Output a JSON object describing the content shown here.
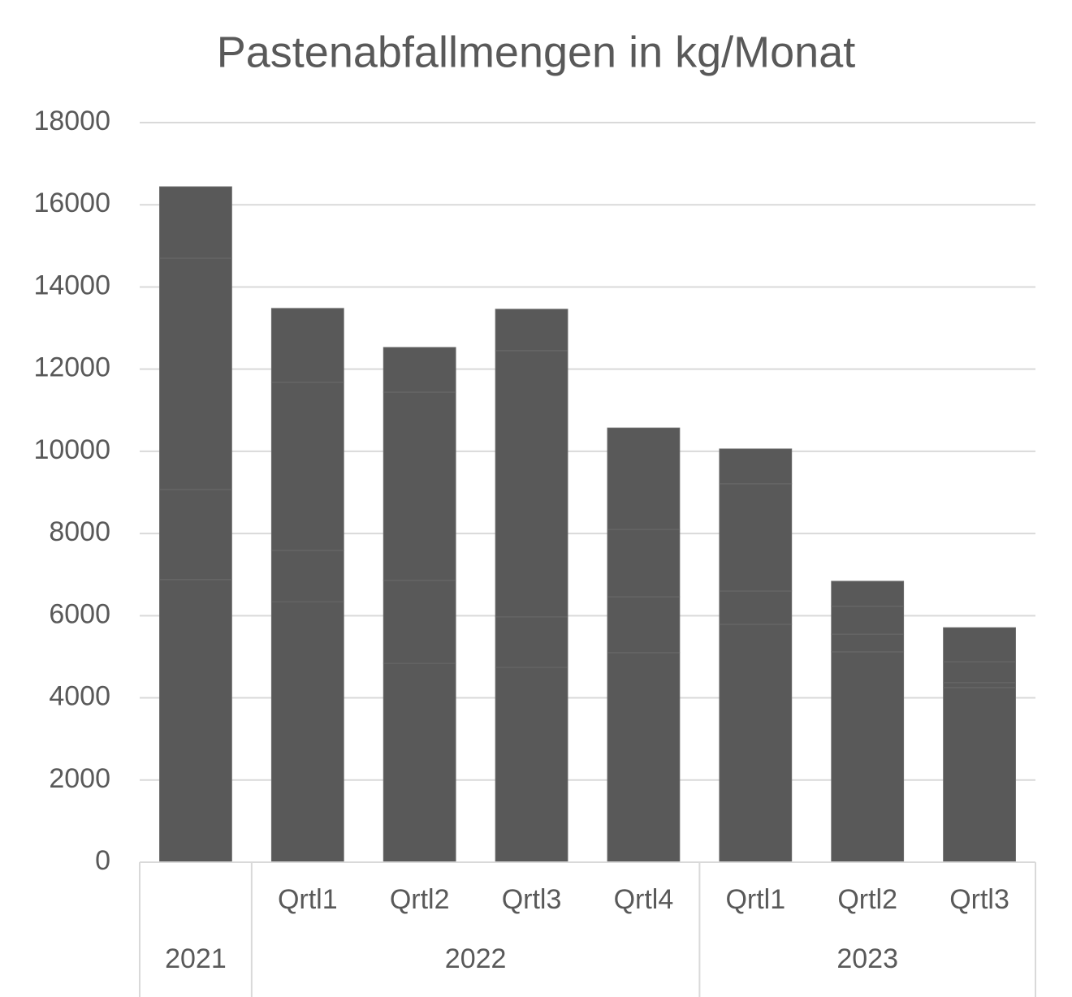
{
  "chart_data": {
    "type": "stacked_bar",
    "title": "Pastenabfallmengen in kg/Monat",
    "categories": [
      null,
      "Qrtl1",
      "Qrtl2",
      "Qrtl3",
      "Qrtl4",
      "Qrtl1",
      "Qrtl2",
      "Qrtl3"
    ],
    "groups": [
      {
        "label": "2021",
        "count": 1
      },
      {
        "label": "2022",
        "count": 4
      },
      {
        "label": "2023",
        "count": 3
      }
    ],
    "series": [
      {
        "color": "#595959",
        "values": [
          6880,
          6340,
          4840,
          4740,
          5100,
          5790,
          5120,
          4250
        ]
      },
      {
        "color": "#595959",
        "values": [
          2190,
          1250,
          2020,
          1230,
          1360,
          810,
          430,
          120
        ]
      },
      {
        "color": "#595959",
        "values": [
          5630,
          4090,
          4580,
          6480,
          1640,
          2610,
          680,
          510
        ]
      },
      {
        "color": "#595959",
        "values": [
          1740,
          1800,
          1090,
          1010,
          2470,
          850,
          610,
          830
        ]
      }
    ],
    "ylim": [
      0,
      18000
    ],
    "yticks": [
      0,
      2000,
      4000,
      6000,
      8000,
      10000,
      12000,
      14000,
      16000,
      18000
    ],
    "grid": true
  }
}
